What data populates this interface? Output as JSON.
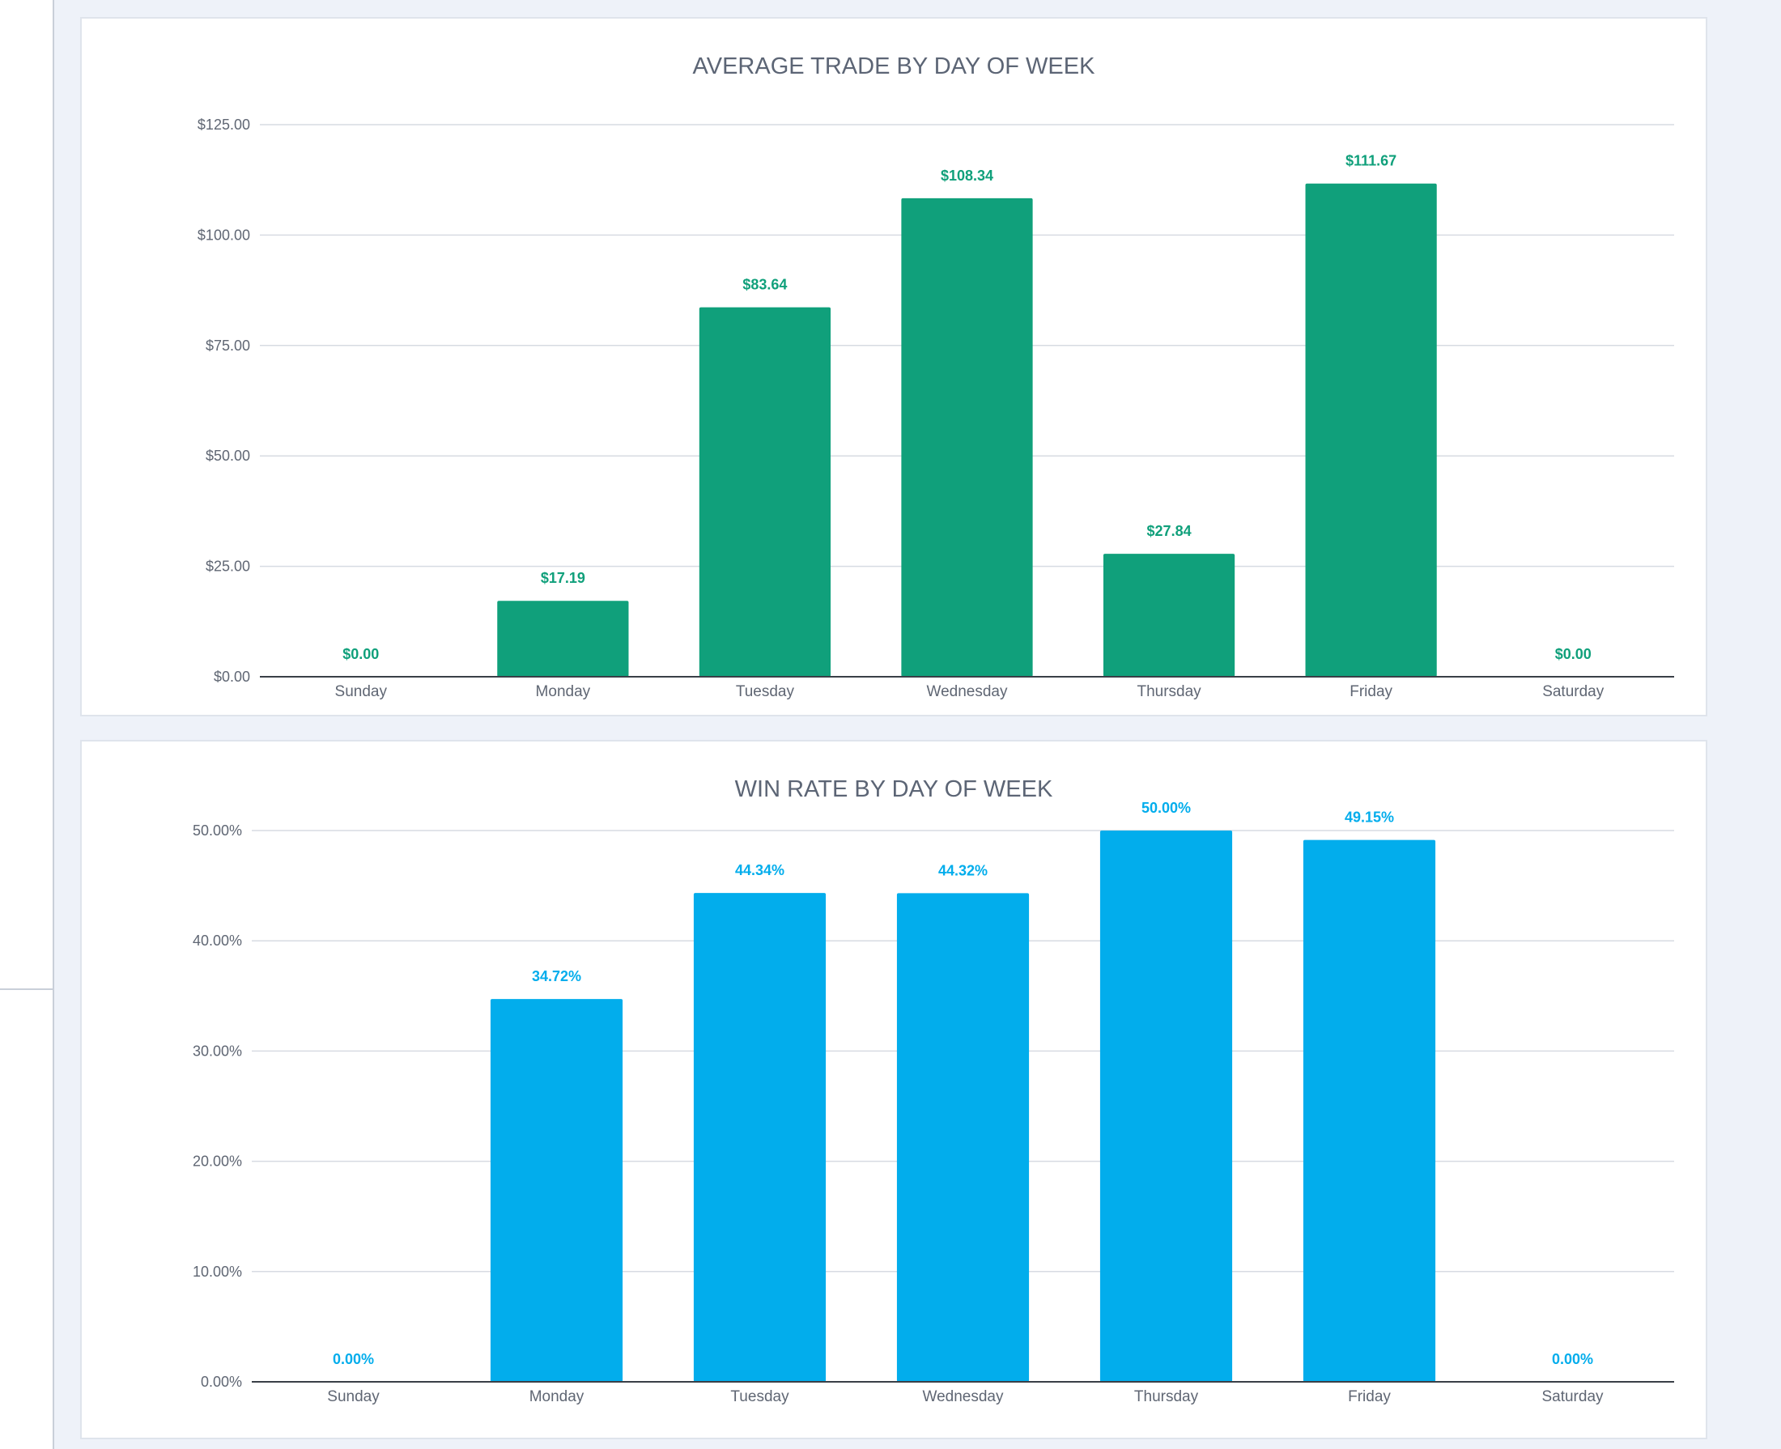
{
  "colors": {
    "trade_bar": "#10a07b",
    "win_bar": "#02adec",
    "gridline": "#d7dbe2",
    "baseline": "#3a3f47"
  },
  "chart_data": [
    {
      "type": "bar",
      "title": "AVERAGE TRADE BY DAY OF WEEK",
      "categories": [
        "Sunday",
        "Monday",
        "Tuesday",
        "Wednesday",
        "Thursday",
        "Friday",
        "Saturday"
      ],
      "values": [
        0.0,
        17.19,
        83.64,
        108.34,
        27.84,
        111.67,
        0.0
      ],
      "data_labels": [
        "$0.00",
        "$17.19",
        "$83.64",
        "$108.34",
        "$27.84",
        "$111.67",
        "$0.00"
      ],
      "ylim": [
        0,
        125
      ],
      "yticks": [
        0,
        25,
        50,
        75,
        100,
        125
      ],
      "ytick_labels": [
        "$0.00",
        "$25.00",
        "$50.00",
        "$75.00",
        "$100.00",
        "$125.00"
      ],
      "xlabel": "",
      "ylabel": "",
      "grid": true,
      "legend": "none"
    },
    {
      "type": "bar",
      "title": "WIN RATE BY DAY OF WEEK",
      "categories": [
        "Sunday",
        "Monday",
        "Tuesday",
        "Wednesday",
        "Thursday",
        "Friday",
        "Saturday"
      ],
      "values": [
        0.0,
        34.72,
        44.34,
        44.32,
        50.0,
        49.15,
        0.0
      ],
      "data_labels": [
        "0.00%",
        "34.72%",
        "44.34%",
        "44.32%",
        "50.00%",
        "49.15%",
        "0.00%"
      ],
      "ylim": [
        0,
        50
      ],
      "yticks": [
        0,
        10,
        20,
        30,
        40,
        50
      ],
      "ytick_labels": [
        "0.00%",
        "10.00%",
        "20.00%",
        "30.00%",
        "40.00%",
        "50.00%"
      ],
      "xlabel": "",
      "ylabel": "",
      "grid": true,
      "legend": "none"
    }
  ]
}
